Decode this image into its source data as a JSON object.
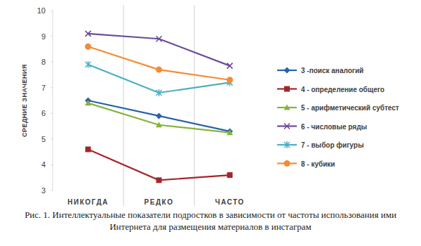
{
  "chart_data": {
    "type": "line",
    "title": "Рис. 1. Интеллектуальные показатели подростков в зависимости от частоты использования ими Интернета для размещения материалов в инстаграм",
    "y_label": "СРЕДНИЕ ЗНАЧЕНИЯ",
    "categories": [
      "НИКОГДА",
      "РЕДКО",
      "ЧАСТО"
    ],
    "ylim": [
      3,
      10
    ],
    "yticks": [
      3,
      4,
      5,
      6,
      7,
      8,
      9,
      10
    ],
    "grid": false,
    "legend": "right",
    "series": [
      {
        "name": "3 -поиск аналогий",
        "color": "#2763a8",
        "marker": "diamond",
        "values": [
          6.5,
          5.9,
          5.3
        ]
      },
      {
        "name": "4 - определение общего",
        "color": "#a3262b",
        "marker": "square",
        "values": [
          4.6,
          3.4,
          3.6
        ]
      },
      {
        "name": "5 - арифметический субтест",
        "color": "#86b33d",
        "marker": "triangle",
        "values": [
          6.4,
          5.55,
          5.25
        ]
      },
      {
        "name": "6 - числовые ряды",
        "color": "#6b4c9a",
        "marker": "x",
        "values": [
          9.1,
          8.9,
          7.85
        ]
      },
      {
        "name": "7 - выбор фигуры",
        "color": "#4aafc8",
        "marker": "star",
        "values": [
          7.9,
          6.8,
          7.2
        ]
      },
      {
        "name": "8 - кубики",
        "color": "#f58c35",
        "marker": "circle",
        "values": [
          8.6,
          7.7,
          7.3
        ]
      }
    ]
  }
}
